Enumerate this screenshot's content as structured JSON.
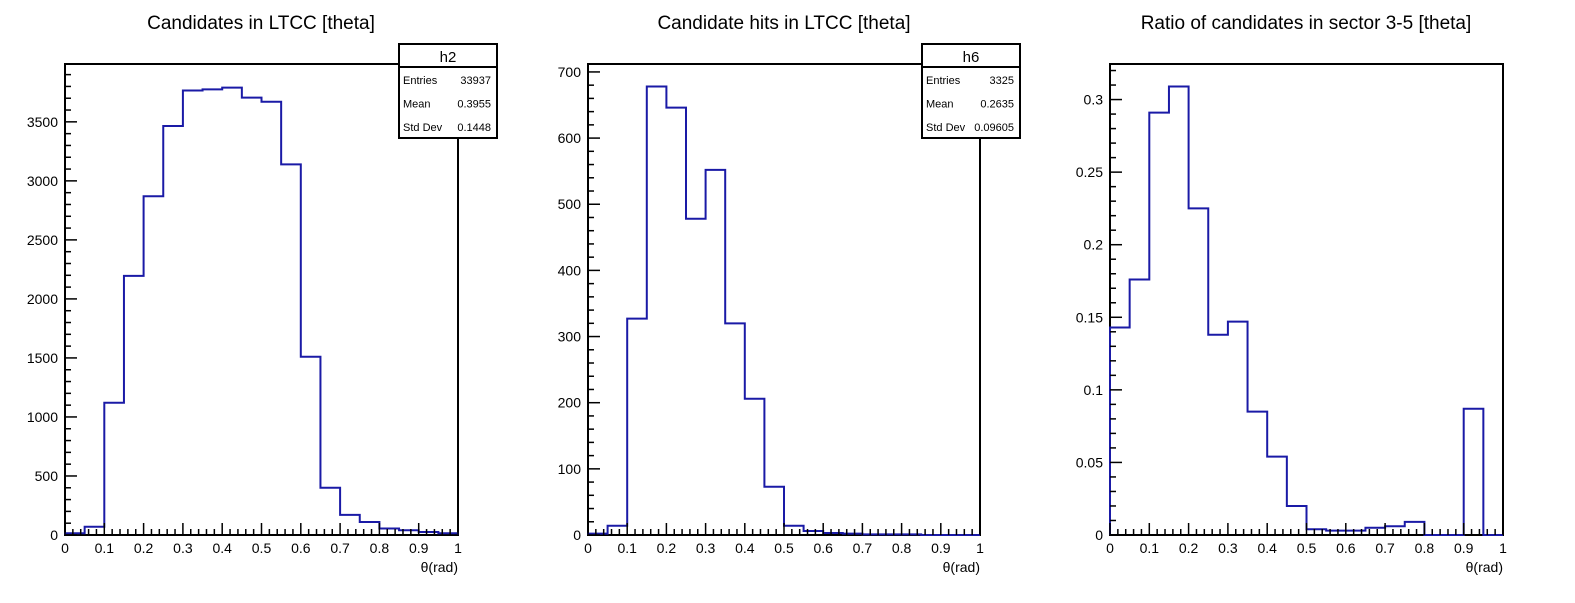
{
  "chart_data": [
    {
      "type": "histogram",
      "title": "Candidates in LTCC [theta]",
      "xlabel": "θ(rad)",
      "ylabel": "",
      "xlim": [
        0,
        1
      ],
      "ylim": [
        0,
        3990
      ],
      "bin_edges": [
        0,
        0.05,
        0.1,
        0.15,
        0.2,
        0.25,
        0.3,
        0.35,
        0.4,
        0.45,
        0.5,
        0.55,
        0.6,
        0.65,
        0.7,
        0.75,
        0.8,
        0.85,
        0.9,
        0.95,
        1.0
      ],
      "values": [
        15,
        70,
        1120,
        2195,
        2870,
        3465,
        3765,
        3775,
        3790,
        3705,
        3670,
        3140,
        1510,
        400,
        170,
        110,
        55,
        40,
        25,
        15
      ],
      "xticks": [
        "0",
        "0.1",
        "0.2",
        "0.3",
        "0.4",
        "0.5",
        "0.6",
        "0.7",
        "0.8",
        "0.9",
        "1"
      ],
      "yticks": [
        0,
        500,
        1000,
        1500,
        2000,
        2500,
        3000,
        3500
      ],
      "line_color": "#1a1aa6",
      "stats": {
        "name": "h2",
        "rows": [
          {
            "label": "Entries",
            "value": "33937"
          },
          {
            "label": "Mean",
            "value": "0.3955"
          },
          {
            "label": "Std Dev",
            "value": "0.1448"
          }
        ]
      }
    },
    {
      "type": "histogram",
      "title": "Candidate hits in LTCC [theta]",
      "xlabel": "θ(rad)",
      "ylabel": "",
      "xlim": [
        0,
        1
      ],
      "ylim": [
        0,
        712
      ],
      "bin_edges": [
        0,
        0.05,
        0.1,
        0.15,
        0.2,
        0.25,
        0.3,
        0.35,
        0.4,
        0.45,
        0.5,
        0.55,
        0.6,
        0.65,
        0.7,
        0.75,
        0.8,
        0.85,
        0.9,
        0.95,
        1.0
      ],
      "values": [
        2,
        14,
        327,
        678,
        646,
        478,
        552,
        320,
        206,
        73,
        14,
        6,
        3,
        2,
        1,
        1,
        1,
        0,
        0,
        0
      ],
      "xticks": [
        "0",
        "0.1",
        "0.2",
        "0.3",
        "0.4",
        "0.5",
        "0.6",
        "0.7",
        "0.8",
        "0.9",
        "1"
      ],
      "yticks": [
        0,
        100,
        200,
        300,
        400,
        500,
        600,
        700
      ],
      "line_color": "#1a1aa6",
      "stats": {
        "name": "h6",
        "rows": [
          {
            "label": "Entries",
            "value": "3325"
          },
          {
            "label": "Mean",
            "value": "0.2635"
          },
          {
            "label": "Std Dev",
            "value": "0.09605"
          }
        ]
      }
    },
    {
      "type": "histogram",
      "title": "Ratio of candidates in sector 3-5 [theta]",
      "xlabel": "θ(rad)",
      "ylabel": "",
      "xlim": [
        0,
        1
      ],
      "ylim": [
        0,
        0.3245
      ],
      "bin_edges": [
        0,
        0.05,
        0.1,
        0.15,
        0.2,
        0.25,
        0.3,
        0.35,
        0.4,
        0.45,
        0.5,
        0.55,
        0.6,
        0.65,
        0.7,
        0.75,
        0.8,
        0.85,
        0.9,
        0.95,
        1.0
      ],
      "values": [
        0.143,
        0.176,
        0.291,
        0.309,
        0.225,
        0.138,
        0.147,
        0.085,
        0.054,
        0.02,
        0.004,
        0.003,
        0.003,
        0.005,
        0.006,
        0.009,
        0,
        0,
        0.087,
        0
      ],
      "xticks": [
        "0",
        "0.1",
        "0.2",
        "0.3",
        "0.4",
        "0.5",
        "0.6",
        "0.7",
        "0.8",
        "0.9",
        "1"
      ],
      "yticks": [
        0,
        0.05,
        0.1,
        0.15,
        0.2,
        0.25,
        0.3
      ],
      "ytick_labels": [
        "0",
        "0.05",
        "0.1",
        "0.15",
        "0.2",
        "0.25",
        "0.3"
      ],
      "line_color": "#1a1aa6"
    }
  ]
}
